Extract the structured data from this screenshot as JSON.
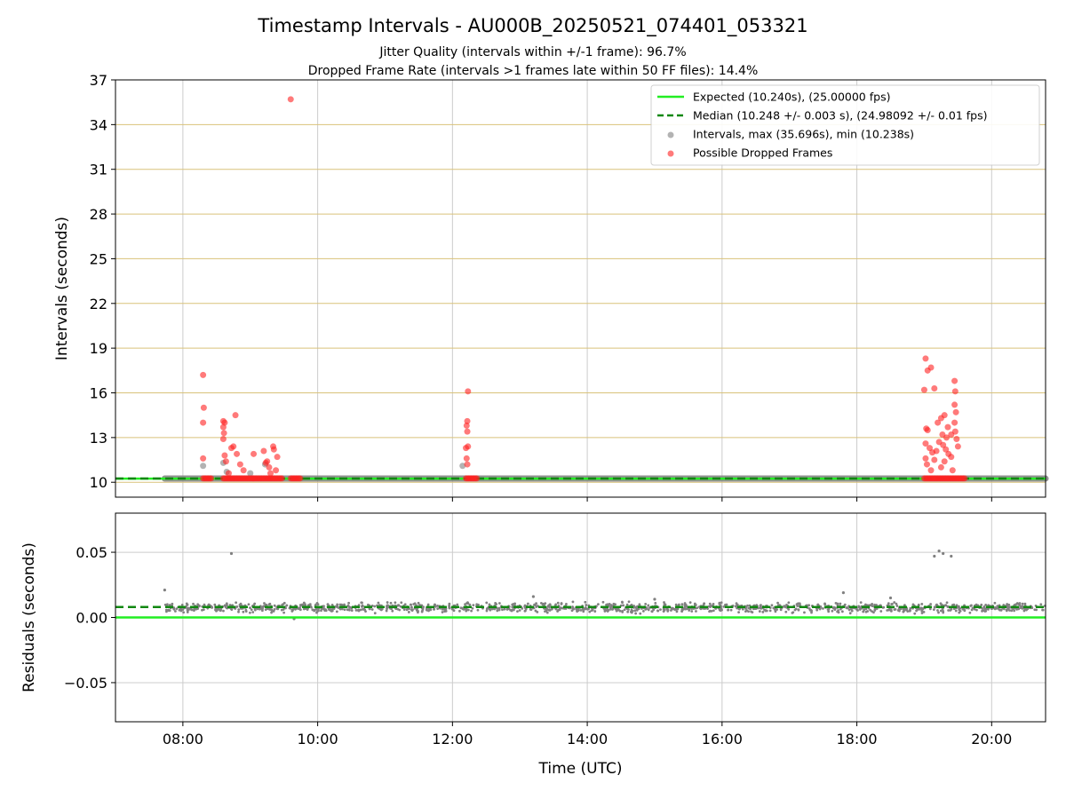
{
  "title": "Timestamp Intervals - AU000B_20250521_074401_053321",
  "subtitle1": "Jitter Quality (intervals within +/-1 frame): 96.7%",
  "subtitle2": "Dropped Frame Rate (intervals >1 frames late within 50 FF files): 14.4%",
  "colors": {
    "expected": "#22ee22",
    "median": "#118811",
    "intervals": "#808080",
    "dropped": "#ff2222",
    "hgrid_top": "#d9c27a",
    "grid": "#cccccc"
  },
  "chart_data": [
    {
      "type": "scatter",
      "name": "intervals",
      "xlabel": "",
      "ylabel": "Intervals (seconds)",
      "xlim": [
        7.0,
        20.8
      ],
      "ylim": [
        9.0,
        37.0
      ],
      "yticks": [
        10,
        13,
        16,
        19,
        22,
        25,
        28,
        31,
        34,
        37
      ],
      "grid": true,
      "legend_position": "top-right",
      "legend": [
        {
          "kind": "line",
          "label": "Expected (10.240s), (25.00000 fps)"
        },
        {
          "kind": "dashed",
          "label": "Median (10.248 +/- 0.003 s), (24.98092 +/- 0.01 fps)"
        },
        {
          "kind": "dot-gray",
          "label": "Intervals, max (35.696s), min (10.238s)"
        },
        {
          "kind": "dot-red",
          "label": "Possible Dropped Frames"
        }
      ],
      "expected": 10.24,
      "median": 10.248,
      "baseline_band": [
        7.73,
        20.8,
        10.248
      ],
      "intervals_gray": [
        [
          8.3,
          11.1
        ],
        [
          8.6,
          11.3
        ],
        [
          9.22,
          11.2
        ],
        [
          12.15,
          11.1
        ],
        [
          8.65,
          10.7
        ],
        [
          9.0,
          10.6
        ]
      ],
      "dropped": [
        [
          9.6,
          35.7
        ],
        [
          8.3,
          17.2
        ],
        [
          8.31,
          15.0
        ],
        [
          8.3,
          14.0
        ],
        [
          8.3,
          11.6
        ],
        [
          8.6,
          14.1
        ],
        [
          8.62,
          14.0
        ],
        [
          8.6,
          13.7
        ],
        [
          8.61,
          13.3
        ],
        [
          8.6,
          12.9
        ],
        [
          8.62,
          11.8
        ],
        [
          8.64,
          11.4
        ],
        [
          8.68,
          10.6
        ],
        [
          8.72,
          12.3
        ],
        [
          8.75,
          12.4
        ],
        [
          8.78,
          14.5
        ],
        [
          8.8,
          11.9
        ],
        [
          8.85,
          11.2
        ],
        [
          8.9,
          10.8
        ],
        [
          9.05,
          11.9
        ],
        [
          9.2,
          12.1
        ],
        [
          9.23,
          11.3
        ],
        [
          9.25,
          11.4
        ],
        [
          9.28,
          11.0
        ],
        [
          9.3,
          10.6
        ],
        [
          9.34,
          12.4
        ],
        [
          9.35,
          12.2
        ],
        [
          9.38,
          10.8
        ],
        [
          9.4,
          11.7
        ],
        [
          12.23,
          16.1
        ],
        [
          12.22,
          14.1
        ],
        [
          12.21,
          13.8
        ],
        [
          12.22,
          13.4
        ],
        [
          12.2,
          12.3
        ],
        [
          12.23,
          12.4
        ],
        [
          12.21,
          11.6
        ],
        [
          12.22,
          11.2
        ],
        [
          19.0,
          16.2
        ],
        [
          19.02,
          18.3
        ],
        [
          19.05,
          17.5
        ],
        [
          19.1,
          17.7
        ],
        [
          19.15,
          16.3
        ],
        [
          19.2,
          14.0
        ],
        [
          19.25,
          14.3
        ],
        [
          19.3,
          14.5
        ],
        [
          19.35,
          13.7
        ],
        [
          19.4,
          13.2
        ],
        [
          19.45,
          16.8
        ],
        [
          19.46,
          16.1
        ],
        [
          19.45,
          15.2
        ],
        [
          19.47,
          14.7
        ],
        [
          19.45,
          14.0
        ],
        [
          19.46,
          13.4
        ],
        [
          19.48,
          12.9
        ],
        [
          19.5,
          12.4
        ],
        [
          19.03,
          13.6
        ],
        [
          19.05,
          13.5
        ],
        [
          19.02,
          12.6
        ],
        [
          19.08,
          12.3
        ],
        [
          19.12,
          12.0
        ],
        [
          19.18,
          12.1
        ],
        [
          19.22,
          12.7
        ],
        [
          19.28,
          12.5
        ],
        [
          19.32,
          12.2
        ],
        [
          19.36,
          11.9
        ],
        [
          19.4,
          11.7
        ],
        [
          19.02,
          11.6
        ],
        [
          19.04,
          11.2
        ],
        [
          19.1,
          10.8
        ],
        [
          19.15,
          11.5
        ],
        [
          19.25,
          11.0
        ],
        [
          19.3,
          11.4
        ],
        [
          19.42,
          10.8
        ],
        [
          19.33,
          13.0
        ],
        [
          19.27,
          13.2
        ]
      ],
      "dropped_base_clusters": [
        [
          8.3,
          8.43
        ],
        [
          8.6,
          9.05
        ],
        [
          9.05,
          9.48
        ],
        [
          9.6,
          9.75
        ],
        [
          12.2,
          12.37
        ],
        [
          19.0,
          19.6
        ]
      ]
    },
    {
      "type": "scatter",
      "name": "residuals",
      "xlabel": "Time (UTC)",
      "ylabel": "Residuals (seconds)",
      "xlim": [
        7.0,
        20.8
      ],
      "ylim": [
        -0.08,
        0.08
      ],
      "yticks": [
        -0.05,
        0.0,
        0.05
      ],
      "ytick_labels": [
        "−0.05",
        "0.00",
        "0.05"
      ],
      "xticks": [
        8,
        10,
        12,
        14,
        16,
        18,
        20
      ],
      "xtick_labels": [
        "08:00",
        "10:00",
        "12:00",
        "14:00",
        "16:00",
        "18:00",
        "20:00"
      ],
      "grid": true,
      "expected": 0.0,
      "median": 0.008,
      "residual_band": [
        7.73,
        20.8,
        0.0075
      ],
      "outliers": [
        [
          7.73,
          0.021
        ],
        [
          8.72,
          0.049
        ],
        [
          19.15,
          0.047
        ],
        [
          19.22,
          0.051
        ],
        [
          19.28,
          0.049
        ],
        [
          19.4,
          0.047
        ],
        [
          9.65,
          -0.001
        ],
        [
          13.2,
          0.016
        ],
        [
          17.8,
          0.019
        ],
        [
          15.0,
          0.014
        ],
        [
          18.5,
          0.015
        ]
      ]
    }
  ]
}
